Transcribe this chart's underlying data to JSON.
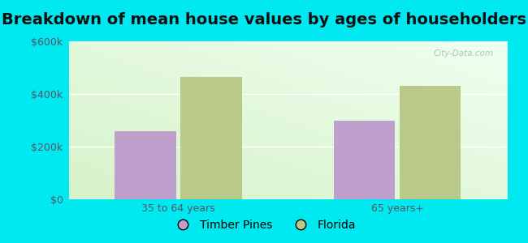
{
  "title": "Breakdown of mean house values by ages of householders",
  "categories": [
    "35 to 64 years",
    "65 years+"
  ],
  "series": [
    {
      "name": "Timber Pines",
      "values": [
        260000,
        300000
      ],
      "color": "#bf9fcc"
    },
    {
      "name": "Florida",
      "values": [
        465000,
        430000
      ],
      "color": "#b8c98a"
    }
  ],
  "ylim": [
    0,
    600000
  ],
  "yticks": [
    0,
    200000,
    400000,
    600000
  ],
  "ytick_labels": [
    "$0",
    "$200k",
    "$400k",
    "$600k"
  ],
  "bar_width": 0.28,
  "outer_bg": "#00e8f0",
  "plot_bg_color": "#e8f5e0",
  "title_fontsize": 14,
  "legend_fontsize": 10,
  "tick_fontsize": 9,
  "watermark": "City-Data.com"
}
